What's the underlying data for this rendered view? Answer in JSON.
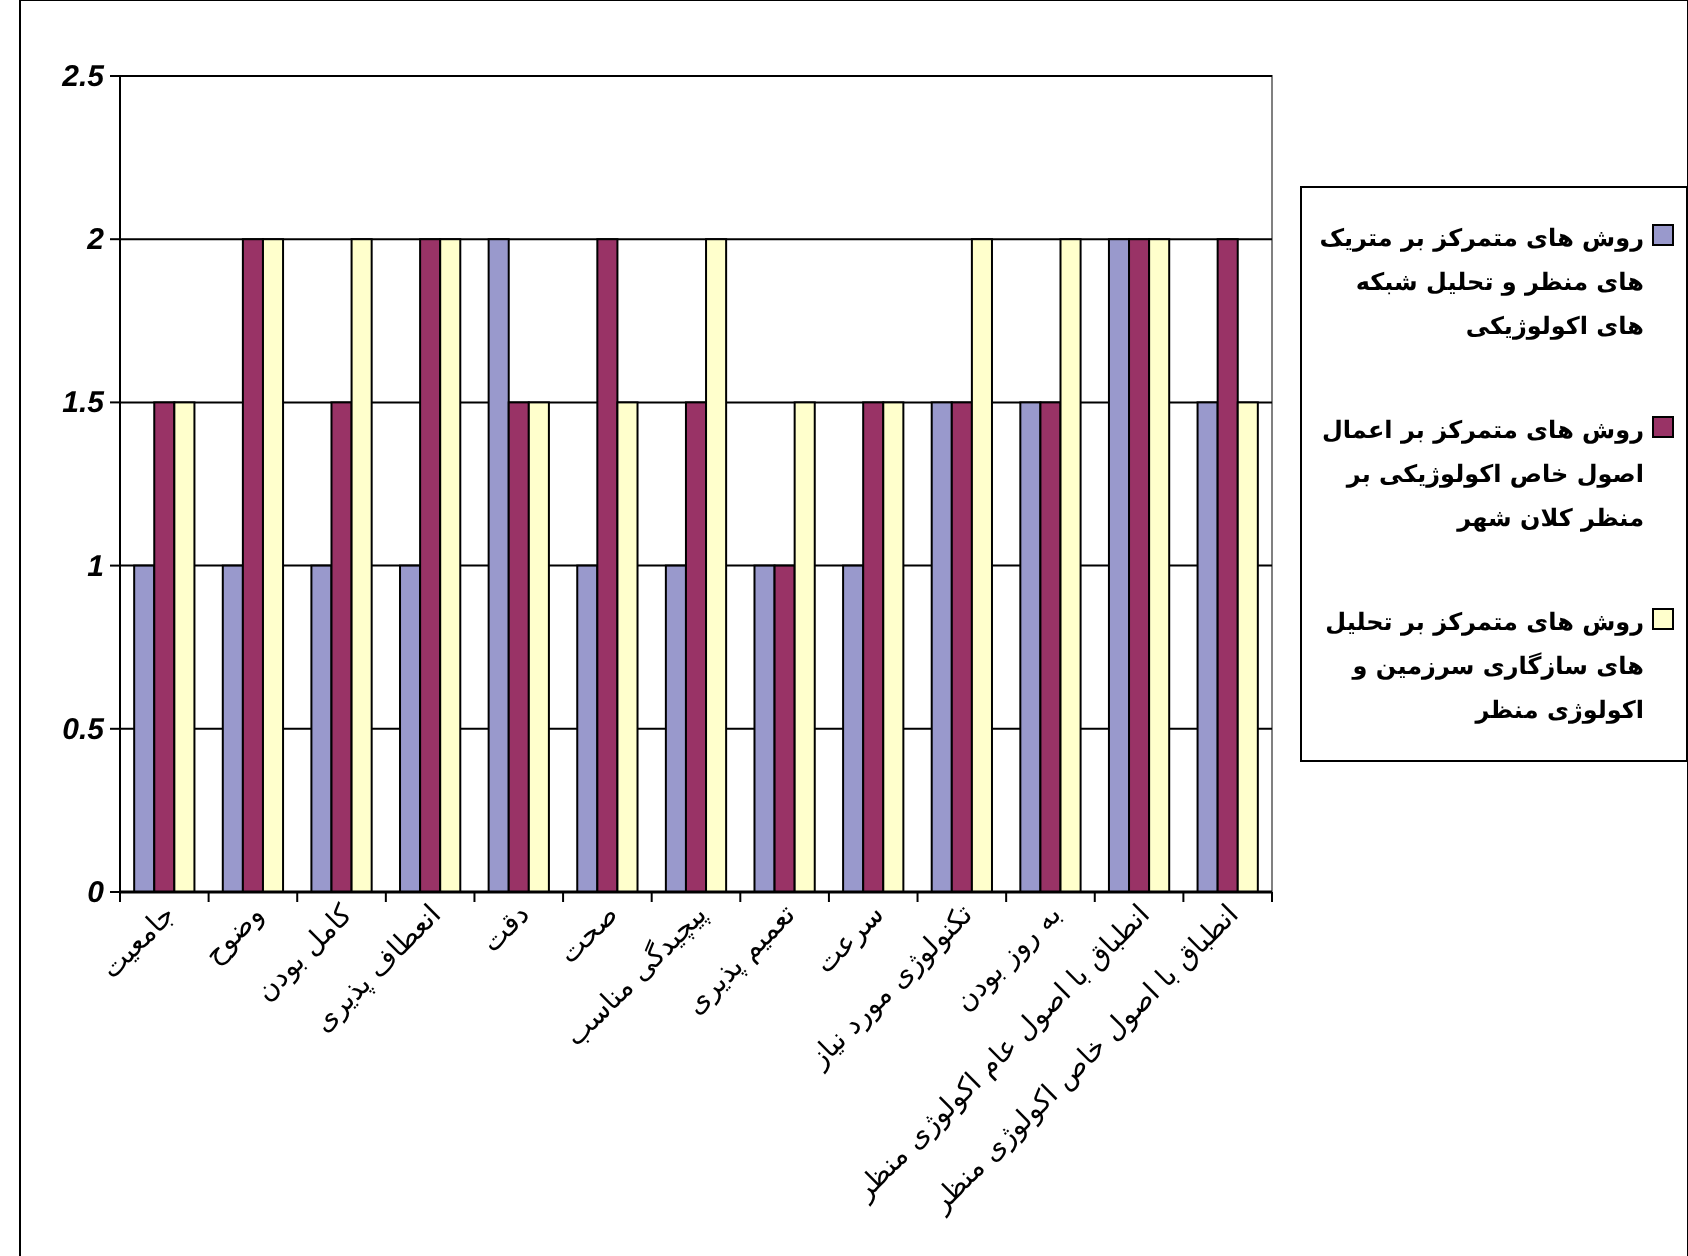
{
  "chart_data": {
    "type": "bar",
    "categories": [
      "جامعیت",
      "وضوح",
      "کامل بودن",
      "انعطاف پذیری",
      "دقت",
      "صحت",
      "پیچیدگی مناسب",
      "تعمیم پذیری",
      "سرعت",
      "تکنولوژی مورد نیاز",
      "به روز بودن",
      "انطباق با اصول عام اکولوژی منظر",
      "انطباق با اصول خاص اکولوژی منظر"
    ],
    "series": [
      {
        "name": "روش های متمرکز بر متریک های منظر و تحلیل شبکه های اکولوژیکی",
        "color": "#9999cc",
        "values": [
          1,
          1,
          1,
          1,
          2,
          1,
          1,
          1,
          1,
          1.5,
          1.5,
          2,
          1.5
        ]
      },
      {
        "name": "روش های متمرکز بر اعمال اصول خاص اکولوژیکی بر منظر کلان شهر",
        "color": "#993366",
        "values": [
          1.5,
          2,
          1.5,
          2,
          1.5,
          2,
          1.5,
          1,
          1.5,
          1.5,
          1.5,
          2,
          2
        ]
      },
      {
        "name": "روش های متمرکز بر تحلیل های سازگاری سرزمین و اکولوژی منظر",
        "color": "#ffffcc",
        "values": [
          1.5,
          2,
          2,
          2,
          1.5,
          1.5,
          2,
          1.5,
          1.5,
          2,
          2,
          2,
          1.5
        ]
      }
    ],
    "ylim": [
      0,
      2.5
    ],
    "yticks": [
      0,
      0.5,
      1,
      1.5,
      2,
      2.5
    ],
    "grid": "y",
    "legend": "right"
  }
}
